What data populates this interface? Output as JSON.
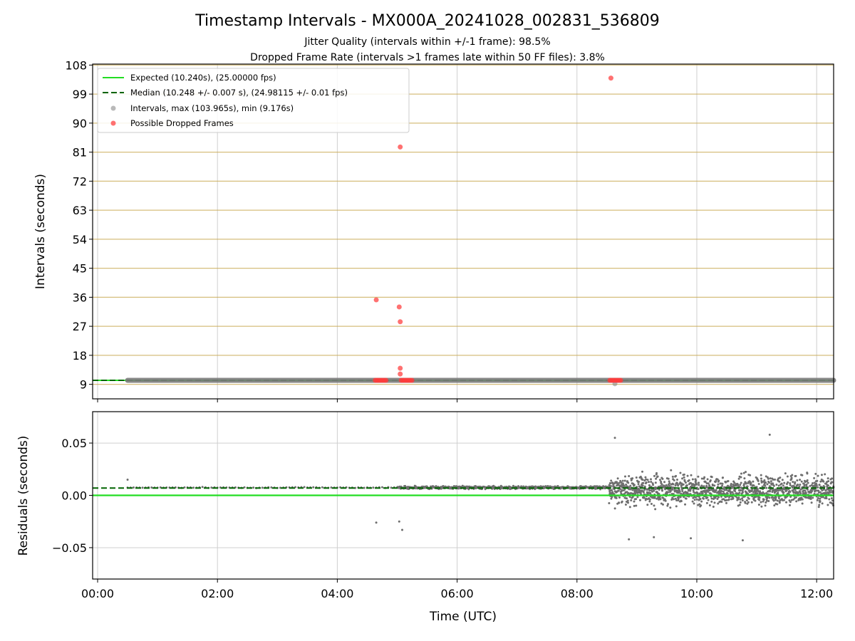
{
  "chart_data": [
    {
      "type": "scatter",
      "title": "Timestamp Intervals - MX000A_20241028_002831_536809",
      "subtitle_lines": [
        "Jitter Quality (intervals within +/-1 frame): 98.5%",
        "Dropped Frame Rate (intervals >1 frames late within 50 FF files): 3.8%"
      ],
      "xlabel": "",
      "ylabel": "Intervals (seconds)",
      "xlim": [
        "23:55",
        "12:17"
      ],
      "ylim": [
        4.5,
        108.3
      ],
      "yticks": [
        9,
        18,
        27,
        36,
        45,
        54,
        63,
        72,
        81,
        90,
        99,
        108
      ],
      "grid": true,
      "legend_position": "upper-left",
      "legend": [
        {
          "label": "Expected (10.240s), (25.00000 fps)",
          "color": "#22dd22",
          "style": "solid-line"
        },
        {
          "label": "Median (10.248 +/- 0.007 s), (24.98115 +/- 0.01 fps)",
          "color": "#006400",
          "style": "dashed-line"
        },
        {
          "label": "Intervals, max (103.965s), min (9.176s)",
          "color": "#808080",
          "style": "marker"
        },
        {
          "label": "Possible Dropped Frames",
          "color": "#ff4d4d",
          "style": "marker"
        }
      ],
      "expected_value": 10.24,
      "median_value": 10.248,
      "intervals_range": [
        "00:30",
        "12:17"
      ],
      "intervals_value": 10.25,
      "interval_outlier": {
        "x": "08:38",
        "y": 9.176
      },
      "dropped_frames": [
        {
          "x": "04:39",
          "y": 35.2
        },
        {
          "x": "05:02",
          "y": 33.0
        },
        {
          "x": "05:03",
          "y": 28.4
        },
        {
          "x": "05:03",
          "y": 82.6
        },
        {
          "x": "05:03",
          "y": 14.0
        },
        {
          "x": "05:03",
          "y": 12.2
        },
        {
          "x": "08:34",
          "y": 103.965
        }
      ],
      "dropped_frame_clusters": [
        {
          "from": "04:38",
          "to": "04:50",
          "y": 10.25
        },
        {
          "from": "05:04",
          "to": "05:16",
          "y": 10.25
        },
        {
          "from": "08:33",
          "to": "08:44",
          "y": 10.25
        }
      ]
    },
    {
      "type": "scatter",
      "xlabel": "Time (UTC)",
      "ylabel": "Residuals (seconds)",
      "xlim": [
        "23:55",
        "12:17"
      ],
      "ylim": [
        -0.08,
        0.08
      ],
      "yticks": [
        0.05,
        0.0,
        -0.05
      ],
      "ytick_labels": [
        "0.05",
        "0.00",
        "−0.05"
      ],
      "xticks": [
        "00:00",
        "02:00",
        "04:00",
        "06:00",
        "08:00",
        "10:00",
        "12:00"
      ],
      "grid": true,
      "expected_line": 0.0,
      "median_line": 0.007,
      "residual_segments": [
        {
          "from": "00:30",
          "to": "05:00",
          "center": 0.0075,
          "spread": 0.0006
        },
        {
          "from": "05:00",
          "to": "08:32",
          "center": 0.0075,
          "spread": 0.002
        },
        {
          "from": "08:32",
          "to": "12:17",
          "center": 0.005,
          "spread": 0.02
        }
      ],
      "residual_outliers": [
        {
          "x": "00:30",
          "y": 0.015
        },
        {
          "x": "04:39",
          "y": -0.026
        },
        {
          "x": "05:02",
          "y": -0.025
        },
        {
          "x": "05:05",
          "y": -0.033
        },
        {
          "x": "08:52",
          "y": -0.042
        },
        {
          "x": "09:17",
          "y": -0.04
        },
        {
          "x": "09:54",
          "y": -0.041
        },
        {
          "x": "10:46",
          "y": -0.043
        },
        {
          "x": "08:38",
          "y": 0.055
        },
        {
          "x": "11:13",
          "y": 0.058
        }
      ]
    }
  ]
}
